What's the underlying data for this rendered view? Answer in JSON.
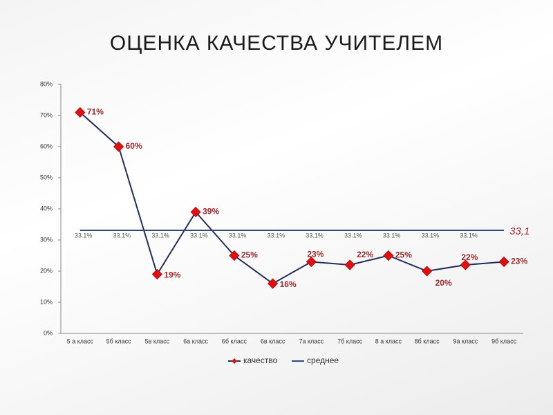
{
  "chart_data": {
    "type": "line",
    "title": "ОЦЕНКА КАЧЕСТВА УЧИТЕЛЕМ",
    "categories": [
      "5 а класс",
      "5б класс",
      "5в класс",
      "6а класс",
      "6б класс",
      "6в класс",
      "7а класс",
      "7б класс",
      "8 а класс",
      "8б класс",
      "9а класс",
      "9б класс"
    ],
    "series": [
      {
        "name": "качество",
        "color": "#1f2d5a",
        "marker_color": "#e01010",
        "values": [
          71,
          60,
          19,
          39,
          25,
          16,
          23,
          22,
          25,
          20,
          22,
          23
        ],
        "value_labels": [
          "71%",
          "60%",
          "19%",
          "39%",
          "25%",
          "16%",
          "23%",
          "22%",
          "25%",
          "20%",
          "22%",
          "23%"
        ]
      },
      {
        "name": "среднее",
        "color": "#2c4a7a",
        "values": [
          33.1,
          33.1,
          33.1,
          33.1,
          33.1,
          33.1,
          33.1,
          33.1,
          33.1,
          33.1,
          33.1,
          33.1
        ],
        "value_labels": [
          "33.1%",
          "33.1%",
          "33.1%",
          "33.1%",
          "33.1%",
          "33.1%",
          "33.1%",
          "33.1%",
          "33.1%",
          "33.1%",
          "33.1%",
          "33,1"
        ]
      }
    ],
    "ylim": [
      0,
      80
    ],
    "yticks": [
      {
        "value": 0,
        "label": "0%"
      },
      {
        "value": 10,
        "label": "10%"
      },
      {
        "value": 20,
        "label": "20%"
      },
      {
        "value": 30,
        "label": "30%"
      },
      {
        "value": 40,
        "label": "40%"
      },
      {
        "value": 50,
        "label": "50%"
      },
      {
        "value": 60,
        "label": "60%"
      },
      {
        "value": 70,
        "label": "70%"
      },
      {
        "value": 80,
        "label": "80%"
      }
    ],
    "legend": "bottom"
  }
}
